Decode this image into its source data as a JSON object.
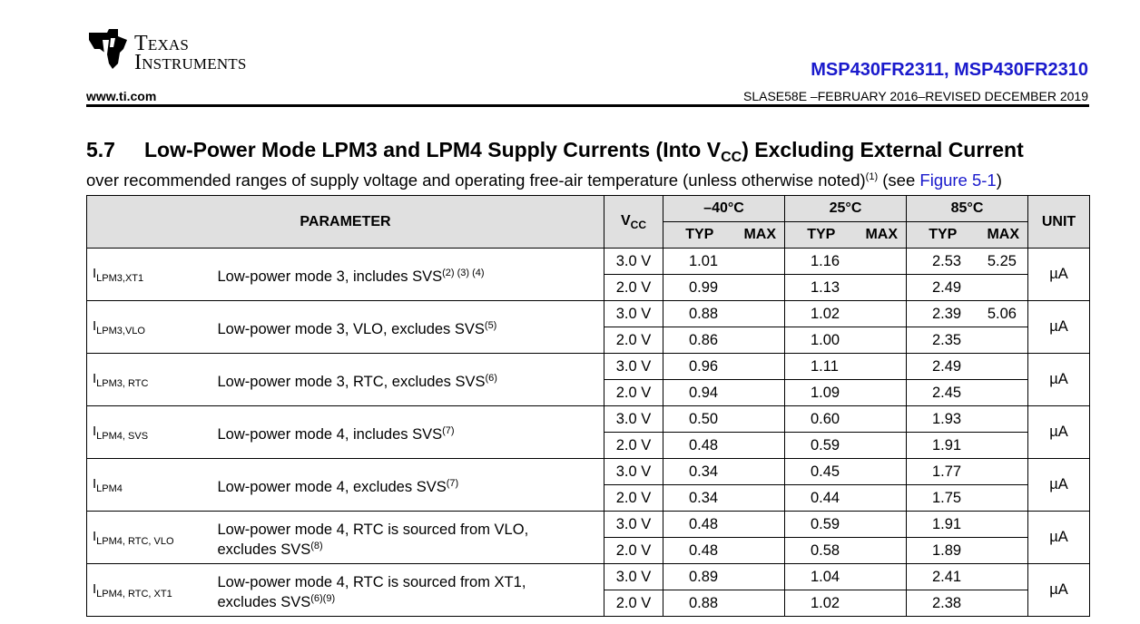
{
  "header": {
    "logo_line1": "Texas",
    "logo_line2": "Instruments",
    "part_number": "MSP430FR2311, MSP430FR2310",
    "website": "www.ti.com",
    "doc_number": "SLASE58E –FEBRUARY 2016–REVISED DECEMBER 2019"
  },
  "section": {
    "number": "5.7",
    "title_pre": "Low-Power Mode LPM3 and LPM4 Supply Currents (Into V",
    "title_sub": "CC",
    "title_post": ") Excluding External Current",
    "subtitle_pre": "over recommended ranges of supply voltage and operating free-air temperature (unless otherwise noted)",
    "subtitle_note": "(1)",
    "subtitle_see": " (see ",
    "subtitle_link": "Figure 5-1",
    "subtitle_close": ")"
  },
  "table": {
    "header": {
      "parameter": "PARAMETER",
      "vcc_main": "V",
      "vcc_sub": "CC",
      "temp_m40": "–40°C",
      "temp_25": "25°C",
      "temp_85": "85°C",
      "typ": "TYP",
      "max": "MAX",
      "unit": "UNIT"
    },
    "rows": [
      {
        "sym": "I",
        "sym_sub": "LPM3,XT1",
        "desc": "Low-power mode 3, includes SVS",
        "desc_sup": "(2) (3) (4)",
        "desc2": "",
        "desc2_sup": "",
        "unit": "µA",
        "r1": {
          "vcc": "3.0 V",
          "m40_typ": "1.01",
          "m40_max": "",
          "t25_typ": "1.16",
          "t25_max": "",
          "t85_typ": "2.53",
          "t85_max": "5.25"
        },
        "r2": {
          "vcc": "2.0 V",
          "m40_typ": "0.99",
          "m40_max": "",
          "t25_typ": "1.13",
          "t25_max": "",
          "t85_typ": "2.49",
          "t85_max": ""
        }
      },
      {
        "sym": "I",
        "sym_sub": "LPM3,VLO",
        "desc": "Low-power mode 3, VLO, excludes SVS",
        "desc_sup": "(5)",
        "desc2": "",
        "desc2_sup": "",
        "unit": "µA",
        "r1": {
          "vcc": "3.0 V",
          "m40_typ": "0.88",
          "m40_max": "",
          "t25_typ": "1.02",
          "t25_max": "",
          "t85_typ": "2.39",
          "t85_max": "5.06"
        },
        "r2": {
          "vcc": "2.0 V",
          "m40_typ": "0.86",
          "m40_max": "",
          "t25_typ": "1.00",
          "t25_max": "",
          "t85_typ": "2.35",
          "t85_max": ""
        }
      },
      {
        "sym": "I",
        "sym_sub": "LPM3, RTC",
        "desc": "Low-power mode 3, RTC, excludes SVS",
        "desc_sup": "(6)",
        "desc2": "",
        "desc2_sup": "",
        "unit": "µA",
        "r1": {
          "vcc": "3.0 V",
          "m40_typ": "0.96",
          "m40_max": "",
          "t25_typ": "1.11",
          "t25_max": "",
          "t85_typ": "2.49",
          "t85_max": ""
        },
        "r2": {
          "vcc": "2.0 V",
          "m40_typ": "0.94",
          "m40_max": "",
          "t25_typ": "1.09",
          "t25_max": "",
          "t85_typ": "2.45",
          "t85_max": ""
        }
      },
      {
        "sym": "I",
        "sym_sub": "LPM4, SVS",
        "desc": "Low-power mode 4, includes SVS",
        "desc_sup": "(7)",
        "desc2": "",
        "desc2_sup": "",
        "unit": "µA",
        "r1": {
          "vcc": "3.0 V",
          "m40_typ": "0.50",
          "m40_max": "",
          "t25_typ": "0.60",
          "t25_max": "",
          "t85_typ": "1.93",
          "t85_max": ""
        },
        "r2": {
          "vcc": "2.0 V",
          "m40_typ": "0.48",
          "m40_max": "",
          "t25_typ": "0.59",
          "t25_max": "",
          "t85_typ": "1.91",
          "t85_max": ""
        }
      },
      {
        "sym": "I",
        "sym_sub": "LPM4",
        "desc": "Low-power mode 4, excludes SVS",
        "desc_sup": "(7)",
        "desc2": "",
        "desc2_sup": "",
        "unit": "µA",
        "r1": {
          "vcc": "3.0 V",
          "m40_typ": "0.34",
          "m40_max": "",
          "t25_typ": "0.45",
          "t25_max": "",
          "t85_typ": "1.77",
          "t85_max": ""
        },
        "r2": {
          "vcc": "2.0 V",
          "m40_typ": "0.34",
          "m40_max": "",
          "t25_typ": "0.44",
          "t25_max": "",
          "t85_typ": "1.75",
          "t85_max": ""
        }
      },
      {
        "sym": "I",
        "sym_sub": "LPM4, RTC, VLO",
        "desc": "Low-power mode 4, RTC is sourced from VLO,",
        "desc_sup": "",
        "desc2": "excludes SVS",
        "desc2_sup": "(8)",
        "unit": "µA",
        "r1": {
          "vcc": "3.0 V",
          "m40_typ": "0.48",
          "m40_max": "",
          "t25_typ": "0.59",
          "t25_max": "",
          "t85_typ": "1.91",
          "t85_max": ""
        },
        "r2": {
          "vcc": "2.0 V",
          "m40_typ": "0.48",
          "m40_max": "",
          "t25_typ": "0.58",
          "t25_max": "",
          "t85_typ": "1.89",
          "t85_max": ""
        }
      },
      {
        "sym": "I",
        "sym_sub": "LPM4, RTC, XT1",
        "desc": "Low-power mode 4, RTC is sourced from XT1,",
        "desc_sup": "",
        "desc2": "excludes SVS",
        "desc2_sup": "(6)(9)",
        "unit": "µA",
        "r1": {
          "vcc": "3.0 V",
          "m40_typ": "0.89",
          "m40_max": "",
          "t25_typ": "1.04",
          "t25_max": "",
          "t85_typ": "2.41",
          "t85_max": ""
        },
        "r2": {
          "vcc": "2.0 V",
          "m40_typ": "0.88",
          "m40_max": "",
          "t25_typ": "1.02",
          "t25_max": "",
          "t85_typ": "2.38",
          "t85_max": ""
        }
      }
    ]
  }
}
